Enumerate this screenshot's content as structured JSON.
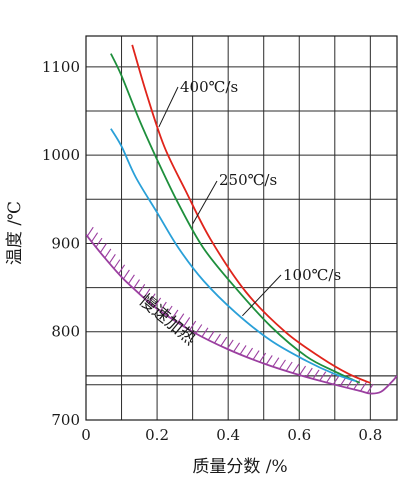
{
  "chart_data": {
    "type": "line",
    "xlabel": "质量分数 /%",
    "ylabel": "温度 /℃",
    "xlim": [
      0,
      0.875
    ],
    "ylim": [
      700,
      1135
    ],
    "x_ticks": [
      0,
      0.2,
      0.4,
      0.6,
      0.8
    ],
    "x_tick_labels": [
      "0",
      "0.2",
      "0.4",
      "0.6",
      "0.8"
    ],
    "y_ticks": [
      700,
      800,
      900,
      1000,
      1100
    ],
    "y_tick_labels": [
      "700",
      "800",
      "900",
      "1000",
      "1100"
    ],
    "grid": true,
    "series": [
      {
        "name": "400℃/s",
        "color": "#e0241b",
        "x": [
          0.13,
          0.17,
          0.22,
          0.28,
          0.35,
          0.45,
          0.56,
          0.66,
          0.74,
          0.8
        ],
        "y": [
          1125,
          1070,
          1010,
          960,
          905,
          845,
          800,
          771,
          752,
          742
        ]
      },
      {
        "name": "250℃/s",
        "color": "#1e8f3c",
        "x": [
          0.07,
          0.1,
          0.15,
          0.2,
          0.26,
          0.33,
          0.42,
          0.52,
          0.62,
          0.7,
          0.77
        ],
        "y": [
          1115,
          1090,
          1040,
          995,
          945,
          895,
          850,
          806,
          772,
          755,
          742
        ]
      },
      {
        "name": "100℃/s",
        "color": "#2aa0d8",
        "x": [
          0.07,
          0.1,
          0.14,
          0.2,
          0.26,
          0.33,
          0.42,
          0.52,
          0.62,
          0.7,
          0.76
        ],
        "y": [
          1030,
          1010,
          975,
          935,
          895,
          858,
          822,
          790,
          767,
          752,
          744
        ]
      },
      {
        "name": "慢速加热",
        "color": "#9b3fa0",
        "x": [
          0.0,
          0.05,
          0.1,
          0.15,
          0.2,
          0.3,
          0.4,
          0.5,
          0.6,
          0.7,
          0.77,
          0.8,
          0.83,
          0.86,
          0.875
        ],
        "y": [
          910,
          885,
          862,
          843,
          826,
          800,
          780,
          764,
          751,
          740,
          733,
          730,
          732,
          743,
          750
        ]
      }
    ],
    "reference_lines_y": [
      740,
      750
    ],
    "annotations": [
      {
        "text": "400℃/s",
        "series": "400℃/s"
      },
      {
        "text": "250℃/s",
        "series": "250℃/s"
      },
      {
        "text": "100℃/s",
        "series": "100℃/s"
      },
      {
        "text": "慢速加热",
        "series": "慢速加热"
      }
    ]
  }
}
